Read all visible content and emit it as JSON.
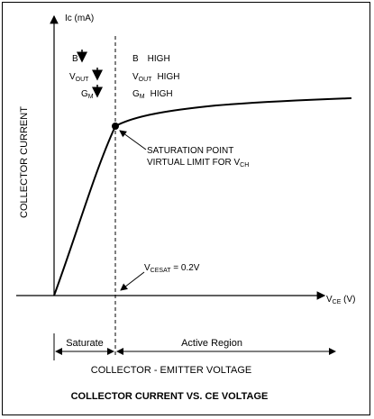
{
  "diagram": {
    "title": "COLLECTOR CURRENT VS. CE VOLTAGE",
    "y_axis": {
      "label": "COLLECTOR CURRENT",
      "unit_label": "Ic (mA)"
    },
    "x_axis": {
      "label": "COLLECTOR - EMITTER VOLTAGE",
      "unit_label_main": "V",
      "unit_label_sub": "CE",
      "unit_label_suffix": " (V)"
    },
    "legend_left": [
      {
        "main": "B",
        "sub": ""
      },
      {
        "main": "V",
        "sub": "OUT"
      },
      {
        "main": "G",
        "sub": "M"
      }
    ],
    "legend_right": [
      {
        "main": "B",
        "sub": "",
        "value": "HIGH"
      },
      {
        "main": "V",
        "sub": "OUT",
        "value": "HIGH"
      },
      {
        "main": "G",
        "sub": "M",
        "value": "HIGH"
      }
    ],
    "saturation_annotation": {
      "line1": "SATURATION POINT",
      "line2_main": "VIRTUAL LIMIT FOR V",
      "line2_sub": "CH"
    },
    "vce_sat_annotation": {
      "main": "V",
      "sub": "CESAT",
      "suffix": " = 0.2V"
    },
    "regions": {
      "left": "Saturate",
      "right": "Active Region"
    }
  },
  "chart_data": {
    "type": "line",
    "series": [
      {
        "name": "",
        "description_points": [
          {
            "x": 0.0,
            "y": 0.0
          },
          {
            "x": 0.2,
            "y": 1.0
          }
        ]
      }
    ],
    "xlabel": "COLLECTOR - EMITTER VOLTAGE",
    "ylabel": "COLLECTOR CURRENT",
    "title": "COLLECTOR CURRENT VS. CE VOLTAGE"
  }
}
